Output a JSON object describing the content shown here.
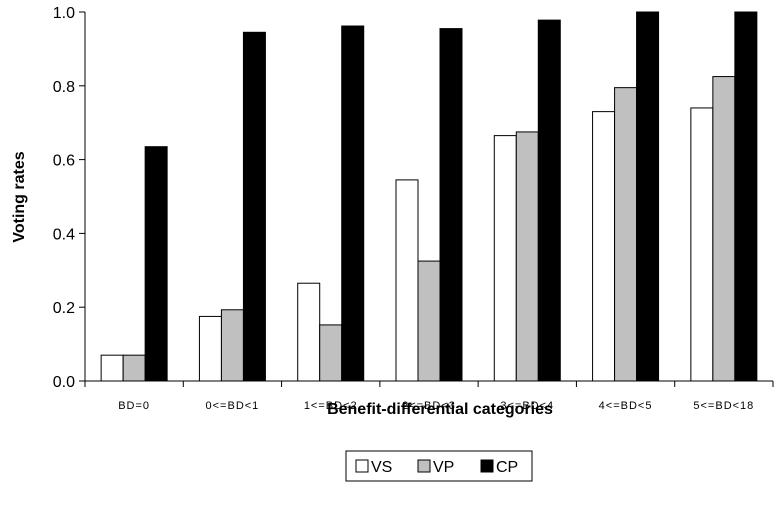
{
  "chart_data": {
    "type": "bar",
    "title": "",
    "xlabel": "Benefit-differential categories",
    "ylabel": "Voting rates",
    "categories": [
      "BD=0",
      "0<=BD<1",
      "1<=BD<2",
      "2<=BD<3",
      "3<=BD<4",
      "4<=BD<5",
      "5<=BD<18"
    ],
    "series": [
      {
        "name": "VS",
        "color": "#ffffff",
        "values": [
          0.07,
          0.175,
          0.265,
          0.545,
          0.665,
          0.73,
          0.74
        ]
      },
      {
        "name": "VP",
        "color": "#c0c0c0",
        "values": [
          0.07,
          0.193,
          0.152,
          0.325,
          0.675,
          0.795,
          0.825
        ]
      },
      {
        "name": "CP",
        "color": "#000000",
        "values": [
          0.635,
          0.945,
          0.962,
          0.955,
          0.978,
          1.0,
          1.0
        ]
      }
    ],
    "ylim": [
      0,
      1.0
    ],
    "yticks": [
      "0.0",
      "0.2",
      "0.4",
      "0.6",
      "0.8",
      "1.0"
    ],
    "grid": false,
    "legend_position": "bottom-center"
  }
}
